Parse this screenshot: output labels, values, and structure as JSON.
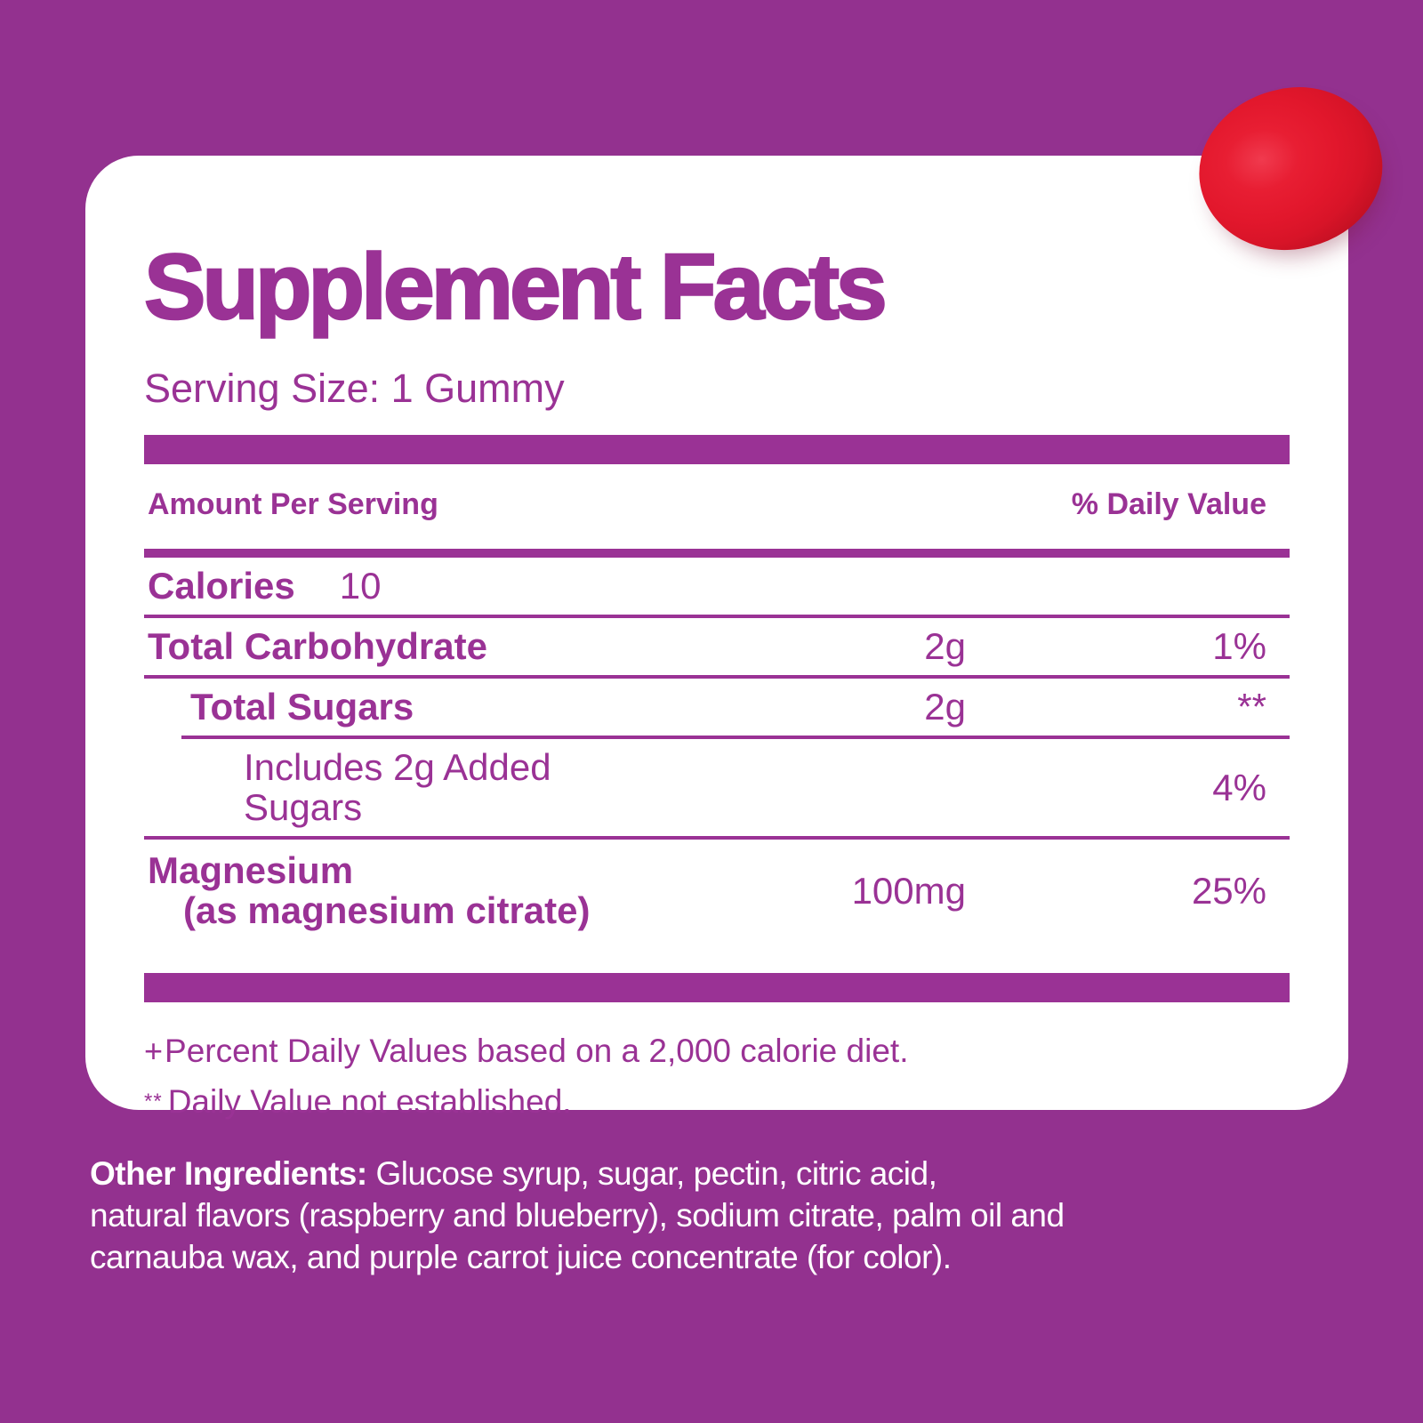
{
  "colors": {
    "background": "#93318F",
    "panel": "#FFFFFF",
    "accent_purple": "#9A3295",
    "gummy_red": "#E21B2D",
    "gummy_red_dark": "#A80D1E",
    "ingredients_text": "#FFFFFF"
  },
  "panel": {
    "title": "Supplement Facts",
    "serving_size": "Serving Size: 1 Gummy",
    "table": {
      "header": {
        "amount_col": "Amount Per Serving",
        "dv_col": "% Daily Value"
      },
      "rows": [
        {
          "name": "Calories",
          "inline_value": "10",
          "amount": "",
          "dv": ""
        },
        {
          "name": "Total Carbohydrate",
          "amount": "2g",
          "dv": "1%"
        },
        {
          "name": "Total Sugars",
          "amount": "2g",
          "dv": "**"
        },
        {
          "name": "Includes 2g Added Sugars",
          "amount": "",
          "dv": "4%"
        },
        {
          "name": "Magnesium",
          "name_sub": "(as magnesium citrate)",
          "amount": "100mg",
          "dv": "25%"
        }
      ]
    },
    "footnotes": [
      {
        "marker": "+",
        "text": "Percent Daily Values based on a 2,000 calorie diet."
      },
      {
        "marker": "**",
        "text": "Daily Value not established."
      }
    ]
  },
  "other_ingredients": {
    "label": "Other Ingredients:",
    "line1_rest": " Glucose syrup, sugar, pectin, citric acid,",
    "line2": "natural flavors (raspberry and blueberry), sodium citrate, palm oil and",
    "line3": "carnauba wax, and purple carrot juice concentrate (for color)."
  }
}
